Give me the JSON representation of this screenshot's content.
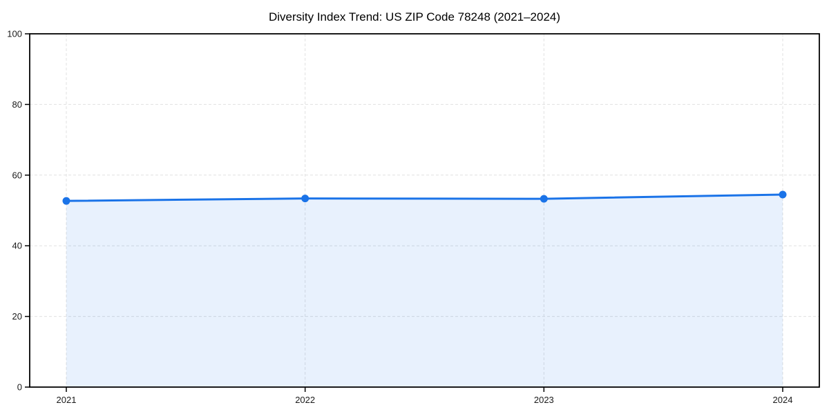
{
  "page": {
    "background": "#ffffff"
  },
  "chart_data": {
    "type": "area",
    "title": "Diversity Index Trend: US ZIP Code 78248 (2021–2024)",
    "categories": [
      "2021",
      "2022",
      "2023",
      "2024"
    ],
    "values": [
      52.7,
      53.4,
      53.3,
      54.5
    ],
    "xlabel": "",
    "ylabel": "",
    "ylim": [
      0,
      100
    ],
    "yticks": [
      0,
      20,
      40,
      60,
      80,
      100
    ],
    "grid": {
      "visible": true,
      "style": "dashed",
      "color": "#e0e0e0"
    },
    "legend": {
      "visible": false,
      "position": "none"
    },
    "colors": {
      "line": "#1a73e8",
      "marker": "#1a73e8",
      "fill": "rgba(26,115,232,0.10)",
      "axis": "#000000",
      "tick_label": "#1a1a1a",
      "title": "#000000"
    }
  }
}
